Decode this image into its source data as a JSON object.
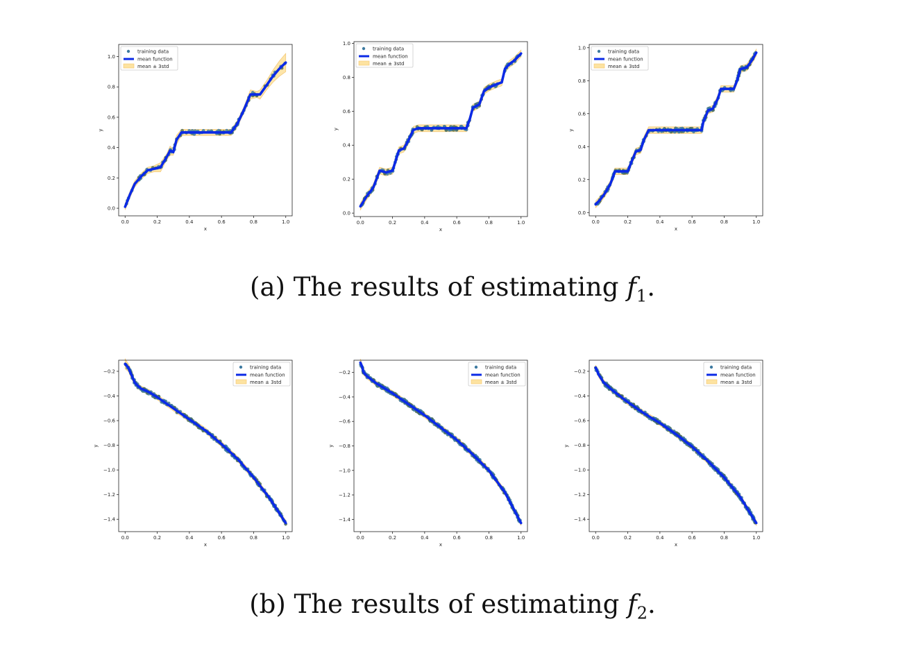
{
  "legend": {
    "training": "training data",
    "mean": "mean function",
    "band": "mean ± 3std"
  },
  "colors": {
    "points": "#3d7aa0",
    "points_dark": "#4c6e5c",
    "mean": "#0b2ae6",
    "band": "#fde3a1",
    "band_edge": "#f3c46c"
  },
  "captions": {
    "a": {
      "prefix": "(a) The results of estimating ",
      "var": "f",
      "sub": "1",
      "suffix": "."
    },
    "b": {
      "prefix": "(b) The results of estimating ",
      "var": "f",
      "sub": "2",
      "suffix": "."
    }
  },
  "chart_data": [
    {
      "type": "scatter",
      "xlabel": "x",
      "ylabel": "y",
      "xlim": [
        -0.04,
        1.04
      ],
      "ylim": [
        -0.05,
        1.08
      ],
      "xticks": [
        "0.0",
        "0.2",
        "0.4",
        "0.6",
        "0.8",
        "1.0"
      ],
      "yticks": [
        "0.0",
        "0.2",
        "0.4",
        "0.6",
        "0.8",
        "1.0"
      ],
      "legend_position": "upper-left",
      "series": [
        {
          "name": "mean function",
          "x": [
            0,
            0.03,
            0.06,
            0.1,
            0.14,
            0.18,
            0.22,
            0.26,
            0.28,
            0.3,
            0.32,
            0.35,
            0.4,
            0.45,
            0.5,
            0.55,
            0.6,
            0.66,
            0.7,
            0.74,
            0.78,
            0.82,
            0.84,
            0.88,
            0.92,
            0.96,
            1.0
          ],
          "y": [
            0.01,
            0.09,
            0.16,
            0.21,
            0.25,
            0.26,
            0.27,
            0.34,
            0.38,
            0.37,
            0.45,
            0.5,
            0.5,
            0.5,
            0.5,
            0.5,
            0.5,
            0.5,
            0.56,
            0.65,
            0.75,
            0.75,
            0.75,
            0.81,
            0.87,
            0.92,
            0.96
          ]
        },
        {
          "name": "mean ± 3std",
          "half_width": [
            0.02,
            0.02,
            0.02,
            0.02,
            0.02,
            0.02,
            0.03,
            0.02,
            0.03,
            0.02,
            0.03,
            0.02,
            0.02,
            0.02,
            0.02,
            0.02,
            0.02,
            0.02,
            0.02,
            0.02,
            0.03,
            0.02,
            0.03,
            0.03,
            0.04,
            0.05,
            0.06
          ]
        }
      ]
    },
    {
      "type": "scatter",
      "xlabel": "x",
      "ylabel": "y",
      "xlim": [
        -0.04,
        1.04
      ],
      "ylim": [
        -0.02,
        1.01
      ],
      "xticks": [
        "0.0",
        "0.2",
        "0.4",
        "0.6",
        "0.8",
        "1.0"
      ],
      "yticks": [
        "0.0",
        "0.2",
        "0.4",
        "0.6",
        "0.8",
        "1.0"
      ],
      "legend_position": "upper-left",
      "series": [
        {
          "name": "mean function",
          "x": [
            0,
            0.04,
            0.08,
            0.1,
            0.12,
            0.16,
            0.2,
            0.22,
            0.24,
            0.27,
            0.3,
            0.33,
            0.36,
            0.4,
            0.5,
            0.6,
            0.66,
            0.68,
            0.7,
            0.74,
            0.77,
            0.8,
            0.85,
            0.88,
            0.9,
            0.93,
            0.96,
            1.0
          ],
          "y": [
            0.04,
            0.1,
            0.15,
            0.2,
            0.25,
            0.24,
            0.25,
            0.31,
            0.37,
            0.38,
            0.43,
            0.49,
            0.5,
            0.5,
            0.5,
            0.5,
            0.5,
            0.55,
            0.62,
            0.64,
            0.72,
            0.74,
            0.76,
            0.77,
            0.85,
            0.88,
            0.9,
            0.94
          ]
        },
        {
          "name": "mean ± 3std",
          "half_width": [
            0.02,
            0.02,
            0.02,
            0.02,
            0.02,
            0.02,
            0.02,
            0.02,
            0.02,
            0.02,
            0.02,
            0.02,
            0.02,
            0.02,
            0.02,
            0.02,
            0.02,
            0.02,
            0.02,
            0.02,
            0.02,
            0.02,
            0.02,
            0.02,
            0.02,
            0.02,
            0.02,
            0.02
          ]
        }
      ]
    },
    {
      "type": "scatter",
      "xlabel": "x",
      "ylabel": "y",
      "xlim": [
        -0.04,
        1.04
      ],
      "ylim": [
        -0.02,
        1.02
      ],
      "xticks": [
        "0.0",
        "0.2",
        "0.4",
        "0.6",
        "0.8",
        "1.0"
      ],
      "yticks": [
        "0.0",
        "0.2",
        "0.4",
        "0.6",
        "0.8",
        "1.0"
      ],
      "legend_position": "upper-left",
      "series": [
        {
          "name": "mean function",
          "x": [
            0,
            0.03,
            0.06,
            0.09,
            0.11,
            0.12,
            0.16,
            0.2,
            0.22,
            0.25,
            0.28,
            0.3,
            0.33,
            0.36,
            0.4,
            0.5,
            0.6,
            0.66,
            0.67,
            0.7,
            0.73,
            0.76,
            0.78,
            0.82,
            0.86,
            0.88,
            0.9,
            0.94,
            0.97,
            1.0
          ],
          "y": [
            0.05,
            0.08,
            0.12,
            0.17,
            0.22,
            0.25,
            0.25,
            0.25,
            0.3,
            0.37,
            0.38,
            0.44,
            0.5,
            0.5,
            0.5,
            0.5,
            0.5,
            0.5,
            0.55,
            0.62,
            0.63,
            0.69,
            0.75,
            0.75,
            0.75,
            0.8,
            0.87,
            0.88,
            0.92,
            0.97
          ]
        },
        {
          "name": "mean ± 3std",
          "half_width": [
            0.02,
            0.02,
            0.02,
            0.02,
            0.02,
            0.02,
            0.02,
            0.02,
            0.02,
            0.02,
            0.02,
            0.02,
            0.02,
            0.02,
            0.02,
            0.02,
            0.02,
            0.02,
            0.02,
            0.02,
            0.02,
            0.02,
            0.02,
            0.02,
            0.02,
            0.02,
            0.02,
            0.02,
            0.02,
            0.02
          ]
        }
      ]
    },
    {
      "type": "scatter",
      "xlabel": "x",
      "ylabel": "y",
      "xlim": [
        -0.04,
        1.04
      ],
      "ylim": [
        -1.5,
        -0.11
      ],
      "xticks": [
        "0.0",
        "0.2",
        "0.4",
        "0.6",
        "0.8",
        "1.0"
      ],
      "yticks": [
        "−0.2",
        "−0.4",
        "−0.6",
        "−0.8",
        "−1.0",
        "−1.2",
        "−1.4"
      ],
      "legend_position": "upper-right",
      "series": [
        {
          "name": "mean function",
          "x": [
            0,
            0.02,
            0.04,
            0.06,
            0.08,
            0.1,
            0.15,
            0.2,
            0.3,
            0.4,
            0.5,
            0.6,
            0.7,
            0.8,
            0.9,
            1.0
          ],
          "y": [
            -0.14,
            -0.17,
            -0.23,
            -0.29,
            -0.32,
            -0.34,
            -0.37,
            -0.41,
            -0.5,
            -0.59,
            -0.68,
            -0.79,
            -0.91,
            -1.06,
            -1.23,
            -1.43
          ]
        },
        {
          "name": "mean ± 3std",
          "half_width": [
            0.04,
            0.03,
            0.03,
            0.02,
            0.02,
            0.02,
            0.02,
            0.02,
            0.02,
            0.02,
            0.02,
            0.02,
            0.02,
            0.02,
            0.02,
            0.02
          ]
        }
      ]
    },
    {
      "type": "scatter",
      "xlabel": "x",
      "ylabel": "y",
      "xlim": [
        -0.04,
        1.04
      ],
      "ylim": [
        -1.5,
        -0.1
      ],
      "xticks": [
        "0.0",
        "0.2",
        "0.4",
        "0.6",
        "0.8",
        "1.0"
      ],
      "yticks": [
        "−0.2",
        "−0.4",
        "−0.6",
        "−0.8",
        "−1.0",
        "−1.2",
        "−1.4"
      ],
      "legend_position": "upper-right",
      "series": [
        {
          "name": "mean function",
          "x": [
            0,
            0.01,
            0.02,
            0.04,
            0.06,
            0.1,
            0.2,
            0.3,
            0.4,
            0.5,
            0.6,
            0.7,
            0.8,
            0.9,
            1.0
          ],
          "y": [
            -0.12,
            -0.15,
            -0.2,
            -0.23,
            -0.25,
            -0.29,
            -0.37,
            -0.46,
            -0.55,
            -0.65,
            -0.75,
            -0.87,
            -1.0,
            -1.18,
            -1.43
          ]
        },
        {
          "name": "mean ± 3std",
          "half_width": [
            0.03,
            0.02,
            0.02,
            0.02,
            0.02,
            0.02,
            0.02,
            0.02,
            0.02,
            0.02,
            0.02,
            0.02,
            0.02,
            0.02,
            0.02
          ]
        }
      ]
    },
    {
      "type": "scatter",
      "xlabel": "x",
      "ylabel": "y",
      "xlim": [
        -0.04,
        1.04
      ],
      "ylim": [
        -1.5,
        -0.11
      ],
      "xticks": [
        "0.0",
        "0.2",
        "0.4",
        "0.6",
        "0.8",
        "1.0"
      ],
      "yticks": [
        "−0.2",
        "−0.4",
        "−0.6",
        "−0.8",
        "−1.0",
        "−1.2",
        "−1.4"
      ],
      "legend_position": "upper-right",
      "series": [
        {
          "name": "mean function",
          "x": [
            0,
            0.02,
            0.05,
            0.1,
            0.2,
            0.3,
            0.4,
            0.5,
            0.6,
            0.7,
            0.8,
            0.9,
            1.0
          ],
          "y": [
            -0.17,
            -0.23,
            -0.29,
            -0.35,
            -0.45,
            -0.54,
            -0.62,
            -0.71,
            -0.81,
            -0.93,
            -1.06,
            -1.22,
            -1.43
          ]
        },
        {
          "name": "mean ± 3std",
          "half_width": [
            0.02,
            0.02,
            0.02,
            0.02,
            0.02,
            0.02,
            0.02,
            0.02,
            0.02,
            0.02,
            0.02,
            0.02,
            0.02
          ]
        }
      ]
    }
  ]
}
